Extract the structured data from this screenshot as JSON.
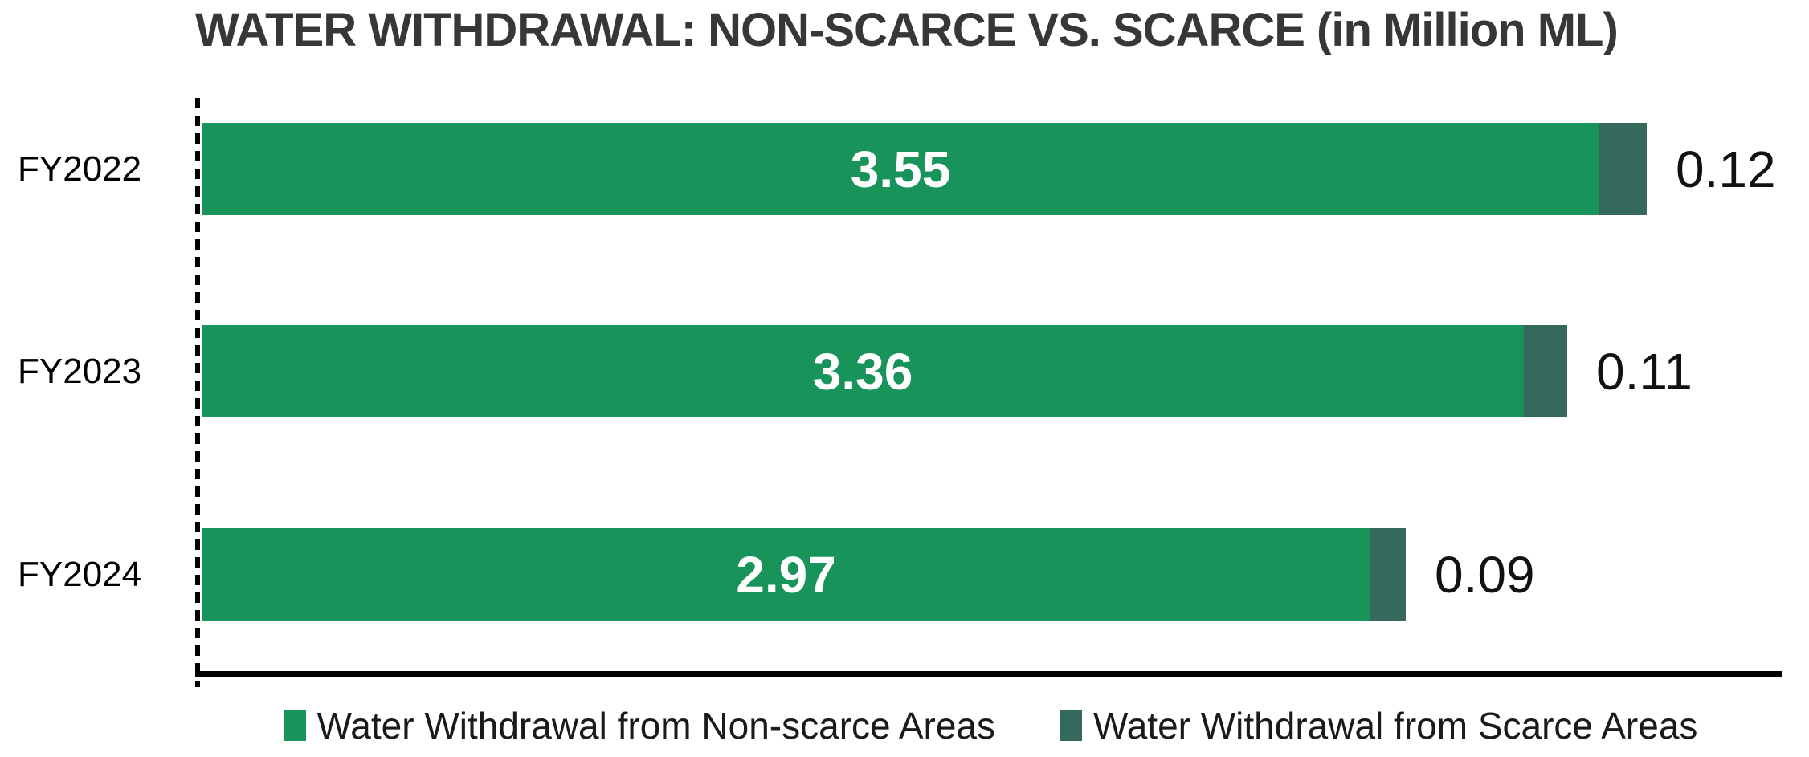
{
  "title": "WATER WITHDRAWAL: NON-SCARCE VS. SCARCE (in Million ML)",
  "colors": {
    "non_scarce_green": "#18945a",
    "scarce_dark_green": "#35695c",
    "title_text": "#373737",
    "axis_line": "#000000",
    "value_inside_text": "#ffffff",
    "value_outside_text": "#111111"
  },
  "chart_data": {
    "type": "bar",
    "orientation": "horizontal",
    "stacked": true,
    "title": "WATER WITHDRAWAL: NON-SCARCE VS. SCARCE (in Million ML)",
    "unit": "Million ML",
    "categories": [
      "FY2022",
      "FY2023",
      "FY2024"
    ],
    "series": [
      {
        "name": "Water Withdrawal from Non-scarce Areas",
        "color": "#18945a",
        "values": [
          3.55,
          3.36,
          2.97
        ]
      },
      {
        "name": "Water Withdrawal from Scarce Areas",
        "color": "#35695c",
        "values": [
          0.12,
          0.11,
          0.09
        ]
      }
    ],
    "xlim": [
      0,
      4.1
    ],
    "grid": false,
    "y_axis_style": "dashed vertical line",
    "x_axis_style": "solid bottom line",
    "legend_position": "bottom-center",
    "value_labels": "non-scarce inside white bold, scarce outside black"
  },
  "legend": {
    "items": [
      {
        "label": "Water Withdrawal from Non-scarce Areas",
        "color": "#18945a"
      },
      {
        "label": "Water Withdrawal from Scarce Areas",
        "color": "#35695c"
      }
    ]
  }
}
